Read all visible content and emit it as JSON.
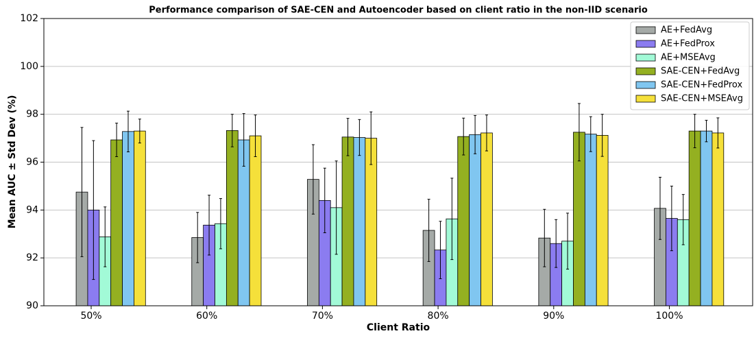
{
  "chart_data": {
    "type": "bar",
    "title": "Performance comparison of SAE-CEN and Autoencoder based on client ratio in the non-IID scenario",
    "x_label": "Client Ratio",
    "y_label": "Mean AUC ± Std Dev (%)",
    "categories": [
      "50%",
      "60%",
      "70%",
      "80%",
      "90%",
      "100%"
    ],
    "series": [
      {
        "name": "AE+FedAvg",
        "color": "#a5aaa7",
        "values": [
          94.75,
          92.85,
          95.28,
          93.15,
          92.83,
          94.07
        ],
        "errors": [
          2.7,
          1.05,
          1.45,
          1.3,
          1.2,
          1.3
        ]
      },
      {
        "name": "AE+FedProx",
        "color": "#8b7cf0",
        "values": [
          94.0,
          93.37,
          94.4,
          92.33,
          92.6,
          93.65
        ],
        "errors": [
          2.9,
          1.25,
          1.35,
          1.2,
          1.0,
          1.35
        ]
      },
      {
        "name": "AE+MSEAvg",
        "color": "#a2fad7",
        "values": [
          92.88,
          93.43,
          94.1,
          93.63,
          92.7,
          93.6
        ],
        "errors": [
          1.25,
          1.05,
          1.95,
          1.7,
          1.17,
          1.05
        ]
      },
      {
        "name": "SAE-CEN+FedAvg",
        "color": "#94b021",
        "values": [
          96.93,
          97.32,
          97.05,
          97.07,
          97.25,
          97.3
        ],
        "errors": [
          0.7,
          0.68,
          0.78,
          0.77,
          1.2,
          0.7
        ]
      },
      {
        "name": "SAE-CEN+FedProx",
        "color": "#80c6f0",
        "values": [
          97.28,
          96.93,
          97.03,
          97.15,
          97.17,
          97.3
        ],
        "errors": [
          0.85,
          1.1,
          0.75,
          0.8,
          0.73,
          0.45
        ]
      },
      {
        "name": "SAE-CEN+MSEAvg",
        "color": "#f5e03a",
        "values": [
          97.3,
          97.1,
          97.0,
          97.22,
          97.12,
          97.22
        ],
        "errors": [
          0.5,
          0.87,
          1.1,
          0.75,
          0.88,
          0.63
        ]
      }
    ],
    "ylim": [
      90,
      102
    ],
    "yticks": [
      90,
      92,
      94,
      96,
      98,
      100,
      102
    ],
    "grid": true,
    "legend": "upper right"
  }
}
